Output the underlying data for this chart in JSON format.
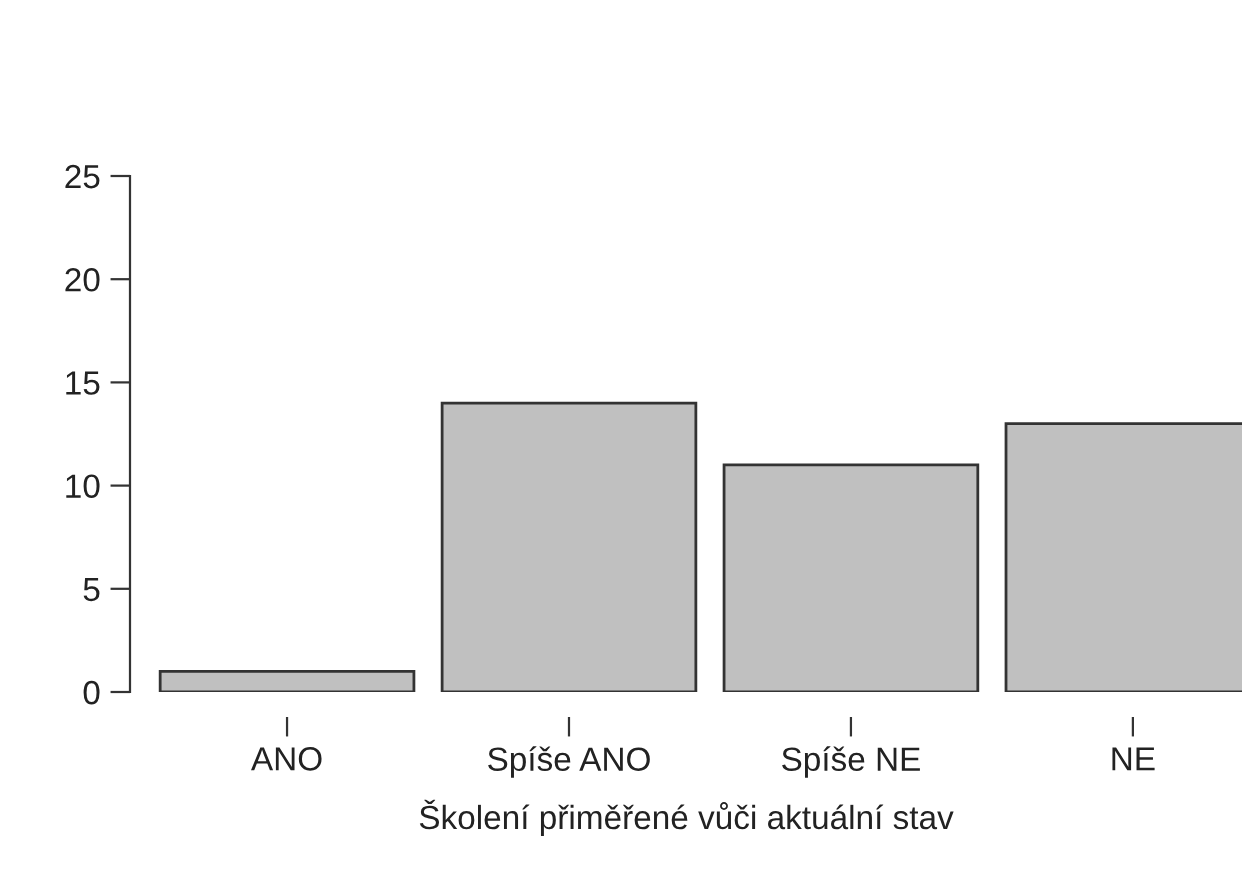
{
  "chart_data": {
    "type": "bar",
    "xlabel": "Školení přiměřené vůči aktuální stav",
    "categories": [
      "ANO",
      "Spíše ANO",
      "Spíše NE",
      "NE"
    ],
    "values": [
      1,
      14,
      11,
      13
    ],
    "color": "#c0c0c0",
    "ylim": [
      0,
      25
    ],
    "yticks": [
      0,
      5,
      10,
      15,
      20,
      25
    ],
    "grid": false,
    "legend": false
  }
}
